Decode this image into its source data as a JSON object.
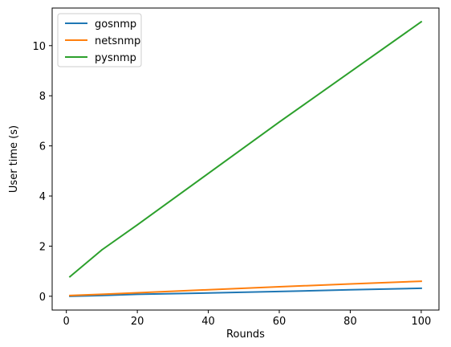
{
  "chart_data": {
    "type": "line",
    "title": "",
    "xlabel": "Rounds",
    "ylabel": "User time (s)",
    "xlim": [
      -4,
      105
    ],
    "ylim": [
      -0.55,
      11.5
    ],
    "xticks": [
      0,
      20,
      40,
      60,
      80,
      100
    ],
    "yticks": [
      0,
      2,
      4,
      6,
      8,
      10
    ],
    "grid": false,
    "legend_position": "upper-left",
    "series": [
      {
        "name": "gosnmp",
        "color": "#1f77b4",
        "x": [
          1,
          10,
          20,
          40,
          60,
          80,
          100
        ],
        "y": [
          0.0,
          0.03,
          0.08,
          0.13,
          0.19,
          0.26,
          0.32
        ]
      },
      {
        "name": "netsnmp",
        "color": "#ff7f0e",
        "x": [
          1,
          10,
          20,
          40,
          60,
          80,
          100
        ],
        "y": [
          0.03,
          0.08,
          0.14,
          0.26,
          0.38,
          0.49,
          0.6
        ]
      },
      {
        "name": "pysnmp",
        "color": "#2ca02c",
        "x": [
          1,
          10,
          20,
          40,
          60,
          80,
          100
        ],
        "y": [
          0.78,
          1.85,
          2.85,
          4.9,
          6.95,
          8.95,
          10.95
        ]
      }
    ]
  }
}
